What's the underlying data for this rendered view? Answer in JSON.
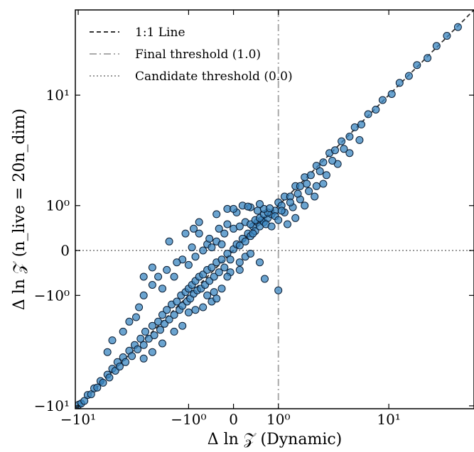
{
  "chart_data": {
    "type": "scatter",
    "xlabel": "Δ ln 𝒵 (Dynamic)",
    "ylabel": "Δ ln 𝒵 (n_live = 20n_dim)",
    "x_scale": "symlog",
    "y_scale": "symlog",
    "xlim": [
      -10.5,
      40
    ],
    "ylim": [
      -10.5,
      40
    ],
    "grid": false,
    "legend_position": "top-left",
    "x_ticks": [
      {
        "value": -10,
        "label": "−10¹"
      },
      {
        "value": -1,
        "label": "−10⁰"
      },
      {
        "value": 0,
        "label": "0"
      },
      {
        "value": 1,
        "label": "10⁰"
      },
      {
        "value": 10,
        "label": "10¹"
      }
    ],
    "y_ticks": [
      {
        "value": -10,
        "label": "−10¹"
      },
      {
        "value": -1,
        "label": "−10⁰"
      },
      {
        "value": 0,
        "label": "0"
      },
      {
        "value": 1,
        "label": "10⁰"
      },
      {
        "value": 10,
        "label": "10¹"
      }
    ],
    "legend": [
      {
        "label": "1:1 Line",
        "style": "dashed",
        "color": "#333333"
      },
      {
        "label": "Final threshold (1.0)",
        "style": "dashdot",
        "color": "#aaaaaa"
      },
      {
        "label": "Candidate threshold (0.0)",
        "style": "dotted",
        "color": "#999999"
      }
    ],
    "reference_lines": {
      "identity": true,
      "vertical_x": 1.0,
      "horizontal_y": 0.0
    },
    "marker_color": "#3a86c0",
    "marker_edge": "#0b1d33",
    "series": [
      {
        "points": [
          [
            -9.9,
            -9.8
          ],
          [
            -9.5,
            -9.6
          ],
          [
            -9.0,
            -9.2
          ],
          [
            -8.5,
            -8.3
          ],
          [
            -8.0,
            -8.2
          ],
          [
            -7.6,
            -7.4
          ],
          [
            -7.2,
            -7.3
          ],
          [
            -6.8,
            -6.5
          ],
          [
            -6.5,
            -6.7
          ],
          [
            -6.0,
            -5.8
          ],
          [
            -5.8,
            -6.1
          ],
          [
            -5.5,
            -5.2
          ],
          [
            -5.2,
            -5.4
          ],
          [
            -5.0,
            -4.6
          ],
          [
            -4.8,
            -5.0
          ],
          [
            -4.5,
            -4.2
          ],
          [
            -4.3,
            -4.6
          ],
          [
            -4.0,
            -3.7
          ],
          [
            -3.8,
            -4.1
          ],
          [
            -3.6,
            -3.3
          ],
          [
            -3.4,
            -3.6
          ],
          [
            -3.2,
            -2.9
          ],
          [
            -3.0,
            -3.3
          ],
          [
            -2.9,
            -2.5
          ],
          [
            -2.7,
            -2.9
          ],
          [
            -2.5,
            -2.2
          ],
          [
            -2.4,
            -2.7
          ],
          [
            -2.2,
            -2.0
          ],
          [
            -2.1,
            -2.4
          ],
          [
            -2.0,
            -1.7
          ],
          [
            -1.9,
            -2.1
          ],
          [
            -1.8,
            -1.5
          ],
          [
            -1.7,
            -1.9
          ],
          [
            -1.6,
            -1.3
          ],
          [
            -1.5,
            -1.7
          ],
          [
            -1.4,
            -1.2
          ],
          [
            -1.3,
            -1.5
          ],
          [
            -1.25,
            -1.0
          ],
          [
            -1.2,
            -1.35
          ],
          [
            -1.1,
            -0.9
          ],
          [
            -1.05,
            -1.2
          ],
          [
            -1.0,
            -0.8
          ],
          [
            -0.95,
            -1.1
          ],
          [
            -0.9,
            -0.7
          ],
          [
            -0.85,
            -0.95
          ],
          [
            -0.8,
            -0.6
          ],
          [
            -0.75,
            -0.85
          ],
          [
            -0.7,
            -0.5
          ],
          [
            -0.65,
            -0.8
          ],
          [
            -0.6,
            -0.45
          ],
          [
            -0.55,
            -0.7
          ],
          [
            -0.5,
            -0.35
          ],
          [
            -0.45,
            -0.6
          ],
          [
            -0.4,
            -0.3
          ],
          [
            -0.35,
            -0.5
          ],
          [
            -0.3,
            -0.2
          ],
          [
            -0.25,
            -0.4
          ],
          [
            -0.2,
            -0.15
          ],
          [
            -0.15,
            -0.3
          ],
          [
            -0.1,
            -0.05
          ],
          [
            -0.05,
            -0.15
          ],
          [
            0.0,
            0.02
          ],
          [
            0.05,
            0.1
          ],
          [
            0.1,
            0.08
          ],
          [
            0.15,
            0.2
          ],
          [
            0.2,
            0.15
          ],
          [
            0.25,
            0.3
          ],
          [
            0.3,
            0.25
          ],
          [
            0.35,
            0.45
          ],
          [
            0.4,
            0.35
          ],
          [
            0.45,
            0.55
          ],
          [
            0.5,
            0.45
          ],
          [
            0.55,
            0.6
          ],
          [
            0.6,
            0.55
          ],
          [
            0.7,
            0.65
          ],
          [
            0.8,
            0.75
          ],
          [
            0.9,
            0.85
          ],
          [
            1.0,
            1.1
          ],
          [
            1.1,
            1.0
          ],
          [
            1.2,
            1.3
          ],
          [
            1.4,
            1.3
          ],
          [
            1.6,
            1.7
          ],
          [
            1.8,
            1.7
          ],
          [
            2.0,
            2.1
          ],
          [
            2.3,
            2.2
          ],
          [
            2.6,
            2.7
          ],
          [
            3.0,
            2.9
          ],
          [
            3.4,
            3.5
          ],
          [
            3.8,
            3.7
          ],
          [
            4.3,
            4.4
          ],
          [
            5.0,
            4.8
          ],
          [
            5.5,
            5.7
          ],
          [
            6.2,
            6.0
          ],
          [
            7.0,
            7.2
          ],
          [
            8.0,
            7.8
          ],
          [
            9.0,
            9.2
          ],
          [
            10.5,
            10.2
          ],
          [
            12.0,
            12.3
          ],
          [
            14.0,
            13.8
          ],
          [
            16.0,
            16.5
          ],
          [
            19.0,
            18.5
          ],
          [
            22.0,
            22.5
          ],
          [
            26.0,
            26.5
          ],
          [
            31.0,
            30.5
          ],
          [
            -2.0,
            -0.8
          ],
          [
            -1.5,
            -0.5
          ],
          [
            -1.0,
            -0.25
          ],
          [
            -0.8,
            -0.1
          ],
          [
            -0.6,
            0.0
          ],
          [
            -0.5,
            0.1
          ],
          [
            -0.4,
            0.05
          ],
          [
            -0.3,
            0.15
          ],
          [
            -0.2,
            0.1
          ],
          [
            -0.25,
            0.4
          ],
          [
            -0.15,
            0.3
          ],
          [
            -0.1,
            0.5
          ],
          [
            0.0,
            0.4
          ],
          [
            0.1,
            0.45
          ],
          [
            0.2,
            0.55
          ],
          [
            0.3,
            0.5
          ],
          [
            0.4,
            0.6
          ],
          [
            0.5,
            0.65
          ],
          [
            0.6,
            0.75
          ],
          [
            0.7,
            0.8
          ],
          [
            -3.0,
            -1.0
          ],
          [
            -2.5,
            -0.7
          ],
          [
            -1.8,
            -0.35
          ],
          [
            -1.2,
            -0.15
          ],
          [
            -0.9,
            0.05
          ],
          [
            -0.7,
            0.3
          ],
          [
            -0.3,
            0.75
          ],
          [
            -0.1,
            0.9
          ],
          [
            0.05,
            0.8
          ],
          [
            0.15,
            1.0
          ],
          [
            0.3,
            0.95
          ],
          [
            0.45,
            0.85
          ],
          [
            0.6,
            0.9
          ],
          [
            0.75,
            0.92
          ],
          [
            0.9,
            0.7
          ],
          [
            1.0,
            0.6
          ],
          [
            1.2,
            0.8
          ],
          [
            1.5,
            0.95
          ],
          [
            1.8,
            1.2
          ],
          [
            2.2,
            1.5
          ],
          [
            2.6,
            1.7
          ],
          [
            3.2,
            2.2
          ],
          [
            4.0,
            2.8
          ],
          [
            5.0,
            3.5
          ],
          [
            6.0,
            4.5
          ],
          [
            2.0,
            1.0
          ],
          [
            2.5,
            1.3
          ],
          [
            3.0,
            1.8
          ],
          [
            1.6,
            0.65
          ],
          [
            1.3,
            0.5
          ],
          [
            -0.5,
            -1.0
          ],
          [
            -0.35,
            -0.9
          ],
          [
            -0.2,
            -0.8
          ],
          [
            0.1,
            -0.2
          ],
          [
            0.2,
            -0.1
          ],
          [
            0.3,
            -0.05
          ],
          [
            0.5,
            -0.2
          ],
          [
            0.1,
            -0.35
          ],
          [
            -0.05,
            -0.4
          ],
          [
            -0.1,
            -0.5
          ],
          [
            -1.0,
            -1.6
          ],
          [
            -0.8,
            -1.5
          ],
          [
            -0.6,
            -1.4
          ],
          [
            -0.4,
            -1.2
          ],
          [
            -0.3,
            -1.1
          ],
          [
            -1.5,
            -2.5
          ],
          [
            -1.2,
            -2.2
          ],
          [
            -2.0,
            -3.2
          ],
          [
            -2.5,
            -3.8
          ],
          [
            -3.0,
            -4.3
          ],
          [
            1.0,
            -0.85
          ],
          [
            0.62,
            -0.55
          ],
          [
            -3.0,
            -0.5
          ],
          [
            -2.5,
            -0.3
          ],
          [
            -1.7,
            0.15
          ],
          [
            -1.1,
            0.3
          ],
          [
            -0.7,
            0.55
          ],
          [
            0.0,
            0.9
          ],
          [
            0.25,
            0.97
          ],
          [
            0.5,
            1.05
          ],
          [
            -4.5,
            -2.5
          ],
          [
            -4.0,
            -2.0
          ],
          [
            -3.5,
            -1.8
          ],
          [
            -5.5,
            -3.0
          ],
          [
            -6.0,
            -3.8
          ],
          [
            -1.4,
            -0.2
          ],
          [
            -2.2,
            -0.5
          ],
          [
            -3.3,
            -1.4
          ],
          [
            -0.85,
            0.4
          ],
          [
            -0.45,
            0.2
          ],
          [
            0.35,
            0.3
          ],
          [
            0.65,
            0.5
          ],
          [
            0.8,
            0.45
          ],
          [
            1.1,
            0.85
          ],
          [
            1.4,
            1.1
          ],
          [
            1.7,
            1.4
          ],
          [
            2.1,
            1.8
          ],
          [
            2.8,
            2.4
          ],
          [
            3.6,
            3.0
          ],
          [
            4.5,
            3.8
          ]
        ]
      }
    ]
  }
}
